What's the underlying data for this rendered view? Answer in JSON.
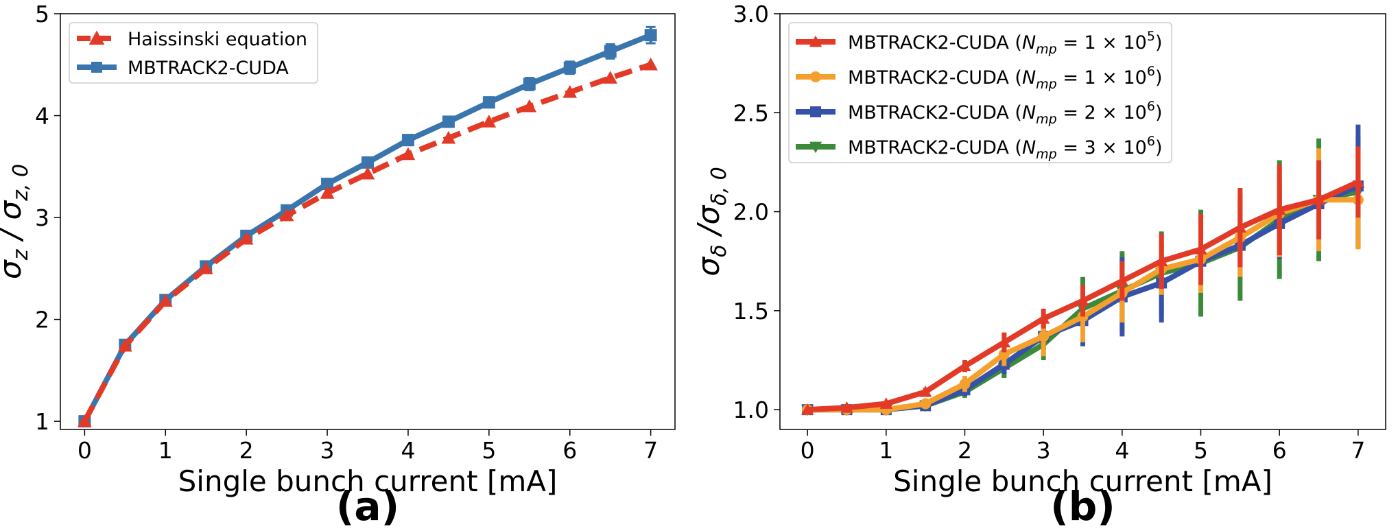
{
  "chart_data": [
    {
      "type": "line",
      "panel_label": "(a)",
      "xlabel": "Single bunch current [mA]",
      "ylabel": {
        "main": "σ",
        "sub1": "z",
        "sep": " / σ",
        "sub2": "z, 0"
      },
      "xlim": [
        -0.3,
        7.3
      ],
      "ylim": [
        0.92,
        5.0
      ],
      "xticks": [
        0,
        1,
        2,
        3,
        4,
        5,
        6,
        7
      ],
      "yticks": [
        1,
        2,
        3,
        4,
        5
      ],
      "x": [
        0,
        0.5,
        1,
        1.5,
        2,
        2.5,
        3,
        3.5,
        4,
        4.5,
        5,
        5.5,
        6,
        6.5,
        7
      ],
      "legend_position": "upper-left",
      "series": [
        {
          "name": "MBTRACK2-CUDA",
          "color": "#3a76ad",
          "style": "solid",
          "marker": "square",
          "values": [
            1.0,
            1.75,
            2.19,
            2.52,
            2.82,
            3.07,
            3.33,
            3.54,
            3.76,
            3.94,
            4.13,
            4.31,
            4.47,
            4.63,
            4.79
          ],
          "errors": [
            0.02,
            0.02,
            0.02,
            0.02,
            0.03,
            0.03,
            0.04,
            0.04,
            0.05,
            0.05,
            0.05,
            0.06,
            0.06,
            0.07,
            0.08
          ]
        },
        {
          "name": "Haissinski equation",
          "color": "#e23a27",
          "style": "dashed",
          "marker": "triangle",
          "values": [
            1.0,
            1.74,
            2.18,
            2.5,
            2.79,
            3.02,
            3.24,
            3.43,
            3.62,
            3.78,
            3.94,
            4.09,
            4.23,
            4.37,
            4.5
          ]
        }
      ]
    },
    {
      "type": "line",
      "panel_label": "(b)",
      "xlabel": "Single bunch current [mA]",
      "ylabel": {
        "main": "σ",
        "sub1": "δ",
        "sep": " /σ",
        "sub2": "δ, 0"
      },
      "xlim": [
        -0.35,
        7.35
      ],
      "ylim": [
        0.9,
        3.0
      ],
      "xticks": [
        0,
        1,
        2,
        3,
        4,
        5,
        6,
        7
      ],
      "yticks": [
        1.0,
        1.5,
        2.0,
        2.5,
        3.0
      ],
      "ytick_labels": [
        "1.0",
        "1.5",
        "2.0",
        "2.5",
        "3.0"
      ],
      "x": [
        0,
        0.5,
        1,
        1.5,
        2,
        2.5,
        3,
        3.5,
        4,
        4.5,
        5,
        5.5,
        6,
        6.5,
        7
      ],
      "legend_position": "upper-left",
      "series": [
        {
          "name": "MBTRACK2-CUDA (N_mp = 3 × 10^6)",
          "legend_prefix": "MBTRACK2-CUDA (",
          "legend_sub": "mp",
          "legend_mid": " = 3 × 10",
          "legend_exp": "6",
          "color": "#3a8a3a",
          "marker": "triangle-down",
          "values": [
            1.0,
            1.0,
            1.0,
            1.02,
            1.09,
            1.21,
            1.33,
            1.51,
            1.6,
            1.69,
            1.74,
            1.82,
            1.96,
            2.06,
            2.1
          ],
          "errors": [
            0.01,
            0.01,
            0.01,
            0.01,
            0.03,
            0.05,
            0.08,
            0.16,
            0.2,
            0.21,
            0.27,
            0.27,
            0.3,
            0.31,
            0.28
          ]
        },
        {
          "name": "MBTRACK2-CUDA (N_mp = 2 × 10^6)",
          "legend_prefix": "MBTRACK2-CUDA (",
          "legend_sub": "mp",
          "legend_mid": " = 2 × 10",
          "legend_exp": "6",
          "color": "#3552a8",
          "marker": "square",
          "values": [
            1.0,
            1.0,
            1.0,
            1.02,
            1.1,
            1.23,
            1.37,
            1.45,
            1.57,
            1.64,
            1.75,
            1.83,
            1.94,
            2.04,
            2.13
          ],
          "errors": [
            0.01,
            0.01,
            0.01,
            0.01,
            0.03,
            0.05,
            0.07,
            0.13,
            0.2,
            0.2,
            0.14,
            0.12,
            0.18,
            0.24,
            0.31
          ]
        },
        {
          "name": "MBTRACK2-CUDA (N_mp = 1 × 10^6)",
          "legend_prefix": "MBTRACK2-CUDA (",
          "legend_sub": "mp",
          "legend_mid": " = 1 × 10",
          "legend_exp": "6",
          "color": "#f5a02d",
          "marker": "circle",
          "values": [
            1.0,
            1.0,
            1.0,
            1.03,
            1.13,
            1.28,
            1.37,
            1.47,
            1.59,
            1.71,
            1.76,
            1.87,
            1.99,
            2.06,
            2.06
          ],
          "errors": [
            0.01,
            0.01,
            0.01,
            0.01,
            0.04,
            0.06,
            0.1,
            0.13,
            0.15,
            0.13,
            0.17,
            0.2,
            0.22,
            0.26,
            0.25
          ]
        },
        {
          "name": "MBTRACK2-CUDA (N_mp = 1 × 10^5)",
          "legend_prefix": "MBTRACK2-CUDA (",
          "legend_sub": "mp",
          "legend_mid": " = 1 × 10",
          "legend_exp": "5",
          "color": "#e23a27",
          "marker": "triangle",
          "values": [
            1.0,
            1.01,
            1.03,
            1.09,
            1.22,
            1.34,
            1.46,
            1.55,
            1.65,
            1.75,
            1.81,
            1.92,
            2.01,
            2.06,
            2.15
          ],
          "errors": [
            0.01,
            0.01,
            0.01,
            0.02,
            0.03,
            0.05,
            0.05,
            0.08,
            0.1,
            0.14,
            0.18,
            0.2,
            0.23,
            0.2,
            0.18
          ]
        }
      ],
      "legend_order": [
        3,
        2,
        1,
        0
      ]
    }
  ]
}
